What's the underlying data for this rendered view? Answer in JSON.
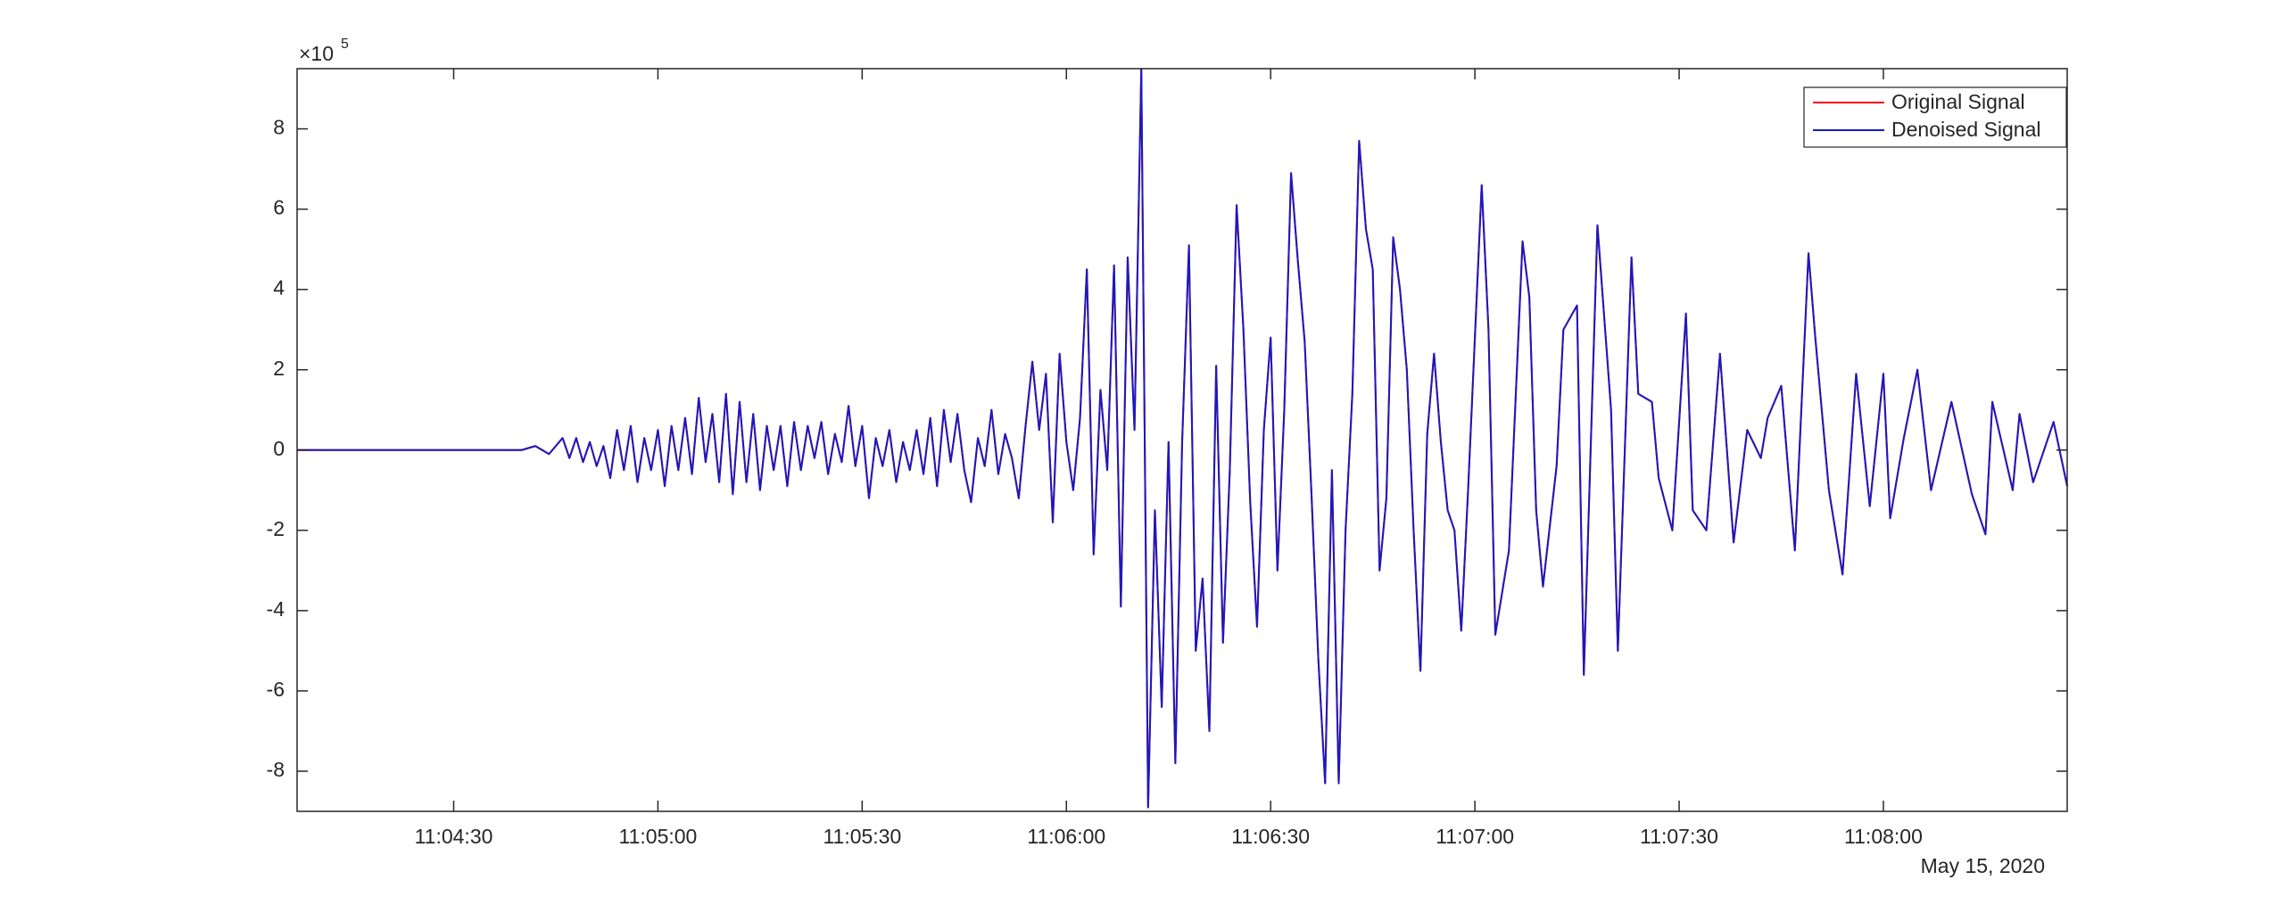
{
  "chart_data": {
    "type": "line",
    "y_scale_base": "×10",
    "y_scale_exponent": "5",
    "date_label": "May 15, 2020",
    "xlim": [
      "11:04:07",
      "11:08:27"
    ],
    "xticks": [
      "11:04:30",
      "11:05:00",
      "11:05:30",
      "11:06:00",
      "11:06:30",
      "11:07:00",
      "11:07:30",
      "11:08:00"
    ],
    "ylim": [
      -9,
      9.5
    ],
    "yticks": [
      -8,
      -6,
      -4,
      -2,
      0,
      2,
      4,
      6,
      8
    ],
    "legend": "top-right",
    "x": [
      "11:04:07",
      "11:04:40",
      "11:04:42",
      "11:04:43",
      "11:04:44",
      "11:04:45",
      "11:04:46",
      "11:04:47",
      "11:04:48",
      "11:04:49",
      "11:04:50",
      "11:04:51",
      "11:04:52",
      "11:04:53",
      "11:04:54",
      "11:04:55",
      "11:04:56",
      "11:04:57",
      "11:04:58",
      "11:04:59",
      "11:05:00",
      "11:05:01",
      "11:05:02",
      "11:05:03",
      "11:05:04",
      "11:05:05",
      "11:05:06",
      "11:05:07",
      "11:05:08",
      "11:05:09",
      "11:05:10",
      "11:05:11",
      "11:05:12",
      "11:05:13",
      "11:05:14",
      "11:05:15",
      "11:05:16",
      "11:05:17",
      "11:05:18",
      "11:05:19",
      "11:05:20",
      "11:05:21",
      "11:05:22",
      "11:05:23",
      "11:05:24",
      "11:05:25",
      "11:05:26",
      "11:05:27",
      "11:05:28",
      "11:05:29",
      "11:05:30",
      "11:05:31",
      "11:05:32",
      "11:05:33",
      "11:05:34",
      "11:05:35",
      "11:05:36",
      "11:05:37",
      "11:05:38",
      "11:05:39",
      "11:05:40",
      "11:05:41",
      "11:05:42",
      "11:05:43",
      "11:05:44",
      "11:05:45",
      "11:05:46",
      "11:05:47",
      "11:05:48",
      "11:05:49",
      "11:05:50",
      "11:05:51",
      "11:05:52",
      "11:05:53",
      "11:05:54",
      "11:05:55",
      "11:05:56",
      "11:05:57",
      "11:05:58",
      "11:05:59",
      "11:06:00",
      "11:06:01",
      "11:06:02",
      "11:06:03",
      "11:06:04",
      "11:06:05",
      "11:06:06",
      "11:06:07",
      "11:06:08",
      "11:06:09",
      "11:06:10",
      "11:06:11",
      "11:06:12",
      "11:06:13",
      "11:06:14",
      "11:06:15",
      "11:06:16",
      "11:06:17",
      "11:06:18",
      "11:06:19",
      "11:06:20",
      "11:06:21",
      "11:06:22",
      "11:06:23",
      "11:06:24",
      "11:06:25",
      "11:06:26",
      "11:06:27",
      "11:06:28",
      "11:06:29",
      "11:06:30",
      "11:06:31",
      "11:06:32",
      "11:06:33",
      "11:06:34",
      "11:06:35",
      "11:06:36",
      "11:06:37",
      "11:06:38",
      "11:06:39",
      "11:06:40",
      "11:06:41",
      "11:06:42",
      "11:06:43",
      "11:06:44",
      "11:06:45",
      "11:06:46",
      "11:06:47",
      "11:06:48",
      "11:06:49",
      "11:06:50",
      "11:06:51",
      "11:06:52",
      "11:06:53",
      "11:06:54",
      "11:06:55",
      "11:06:56",
      "11:06:57",
      "11:06:58",
      "11:06:59",
      "11:07:01",
      "11:07:02",
      "11:07:03",
      "11:07:05",
      "11:07:07",
      "11:07:08",
      "11:07:09",
      "11:07:10",
      "11:07:12",
      "11:07:13",
      "11:07:15",
      "11:07:16",
      "11:07:18",
      "11:07:20",
      "11:07:21",
      "11:07:23",
      "11:07:24",
      "11:07:26",
      "11:07:27",
      "11:07:29",
      "11:07:31",
      "11:07:32",
      "11:07:34",
      "11:07:36",
      "11:07:38",
      "11:07:40",
      "11:07:42",
      "11:07:43",
      "11:07:45",
      "11:07:47",
      "11:07:49",
      "11:07:50",
      "11:07:52",
      "11:07:54",
      "11:07:56",
      "11:07:58",
      "11:08:00",
      "11:08:01",
      "11:08:03",
      "11:08:05",
      "11:08:07",
      "11:08:10",
      "11:08:13",
      "11:08:15",
      "11:08:16",
      "11:08:19",
      "11:08:20",
      "11:08:22",
      "11:08:25",
      "11:08:27"
    ],
    "series": [
      {
        "name": "Original Signal",
        "color": "#ff0000",
        "values": [
          0,
          0,
          0.1,
          0,
          -0.1,
          0.1,
          0.3,
          -0.2,
          0.3,
          -0.3,
          0.2,
          -0.4,
          0.1,
          -0.7,
          0.5,
          -0.5,
          0.6,
          -0.8,
          0.3,
          -0.5,
          0.5,
          -0.9,
          0.6,
          -0.5,
          0.8,
          -0.6,
          1.3,
          -0.3,
          0.9,
          -0.8,
          1.4,
          -1.1,
          1.2,
          -0.8,
          0.9,
          -1.0,
          0.6,
          -0.5,
          0.6,
          -0.9,
          0.7,
          -0.5,
          0.6,
          -0.2,
          0.7,
          -0.6,
          0.4,
          -0.3,
          1.1,
          -0.4,
          0.6,
          -1.2,
          0.3,
          -0.4,
          0.5,
          -0.8,
          0.2,
          -0.5,
          0.5,
          -0.6,
          0.8,
          -0.9,
          1.0,
          -0.3,
          0.9,
          -0.5,
          -1.3,
          0.3,
          -0.4,
          1.0,
          -0.6,
          0.4,
          -0.2,
          -1.2,
          0.6,
          2.2,
          0.5,
          1.9,
          -1.8,
          2.4,
          0.2,
          -1.0,
          0.8,
          4.5,
          -2.6,
          1.5,
          -0.5,
          4.6,
          -3.9,
          4.8,
          0.5,
          9.5,
          -8.9,
          -1.5,
          -6.4,
          0.2,
          -7.8,
          0.2,
          5.1,
          -5.0,
          -3.2,
          -7.0,
          2.1,
          -4.8,
          -0.5,
          6.1,
          3.0,
          -1.3,
          -4.4,
          0.5,
          2.8,
          -3.0,
          1.0,
          6.9,
          4.7,
          2.7,
          -1.1,
          -5.2,
          -8.3,
          -0.5,
          -8.3,
          -2,
          1.4,
          7.7,
          5.5,
          4.5,
          -3.0,
          -1.2,
          5.3,
          4.0,
          2.0,
          -2.0,
          -5.5,
          0.4,
          2.4,
          0.2,
          -1.5,
          -2.0,
          -4.5,
          -1.0,
          6.6,
          3.0,
          -4.6,
          -2.5,
          5.2,
          3.8,
          -1.5,
          -3.4,
          -0.4,
          3.0,
          3.6,
          -5.6,
          5.6,
          1.0,
          -5.0,
          4.8,
          1.4,
          1.2,
          -0.7,
          -2.0,
          3.4,
          -1.5,
          -2.0,
          2.4,
          -2.3,
          0.5,
          -0.2,
          0.8,
          1.6,
          -2.5,
          4.9,
          2.8,
          -1.0,
          -3.1,
          1.9,
          -1.4,
          1.9,
          -1.7,
          0.3,
          2.0,
          -1.0,
          1.2,
          -1.1,
          -2.1,
          1.2,
          -1.0,
          0.9,
          -0.8,
          0.7,
          -0.9
        ]
      },
      {
        "name": "Denoised Signal",
        "color": "#1a1abf",
        "values": [
          0,
          0,
          0.1,
          0,
          -0.1,
          0.1,
          0.3,
          -0.2,
          0.3,
          -0.3,
          0.2,
          -0.4,
          0.1,
          -0.7,
          0.5,
          -0.5,
          0.6,
          -0.8,
          0.3,
          -0.5,
          0.5,
          -0.9,
          0.6,
          -0.5,
          0.8,
          -0.6,
          1.3,
          -0.3,
          0.9,
          -0.8,
          1.4,
          -1.1,
          1.2,
          -0.8,
          0.9,
          -1.0,
          0.6,
          -0.5,
          0.6,
          -0.9,
          0.7,
          -0.5,
          0.6,
          -0.2,
          0.7,
          -0.6,
          0.4,
          -0.3,
          1.1,
          -0.4,
          0.6,
          -1.2,
          0.3,
          -0.4,
          0.5,
          -0.8,
          0.2,
          -0.5,
          0.5,
          -0.6,
          0.8,
          -0.9,
          1.0,
          -0.3,
          0.9,
          -0.5,
          -1.3,
          0.3,
          -0.4,
          1.0,
          -0.6,
          0.4,
          -0.2,
          -1.2,
          0.6,
          2.2,
          0.5,
          1.9,
          -1.8,
          2.4,
          0.2,
          -1.0,
          0.8,
          4.5,
          -2.6,
          1.5,
          -0.5,
          4.6,
          -3.9,
          4.8,
          0.5,
          9.5,
          -8.9,
          -1.5,
          -6.4,
          0.2,
          -7.8,
          0.2,
          5.1,
          -5.0,
          -3.2,
          -7.0,
          2.1,
          -4.8,
          -0.5,
          6.1,
          3.0,
          -1.3,
          -4.4,
          0.5,
          2.8,
          -3.0,
          1.0,
          6.9,
          4.7,
          2.7,
          -1.1,
          -5.2,
          -8.3,
          -0.5,
          -8.3,
          -2,
          1.4,
          7.7,
          5.5,
          4.5,
          -3.0,
          -1.2,
          5.3,
          4.0,
          2.0,
          -2.0,
          -5.5,
          0.4,
          2.4,
          0.2,
          -1.5,
          -2.0,
          -4.5,
          -1.0,
          6.6,
          3.0,
          -4.6,
          -2.5,
          5.2,
          3.8,
          -1.5,
          -3.4,
          -0.4,
          3.0,
          3.6,
          -5.6,
          5.6,
          1.0,
          -5.0,
          4.8,
          1.4,
          1.2,
          -0.7,
          -2.0,
          3.4,
          -1.5,
          -2.0,
          2.4,
          -2.3,
          0.5,
          -0.2,
          0.8,
          1.6,
          -2.5,
          4.9,
          2.8,
          -1.0,
          -3.1,
          1.9,
          -1.4,
          1.9,
          -1.7,
          0.3,
          2.0,
          -1.0,
          1.2,
          -1.1,
          -2.1,
          1.2,
          -1.0,
          0.9,
          -0.8,
          0.7,
          -0.9
        ]
      }
    ]
  }
}
